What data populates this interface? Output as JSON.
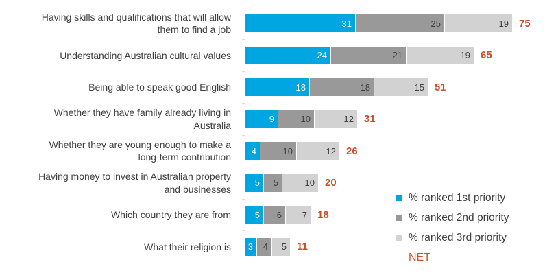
{
  "chart_data": {
    "type": "bar",
    "orientation": "horizontal",
    "stacked": true,
    "grid": false,
    "legend_position": "bottom-right",
    "value_labels": "inside-end",
    "xlim": [
      0,
      88
    ],
    "categories": [
      "Having skills and qualifications that will allow\nthem to find a job",
      "Understanding Australian cultural values",
      "Being able to speak good English",
      "Whether they have family already living in\nAustralia",
      "Whether they are young enough to make a\nlong-term contribution",
      "Having money to invest in Australian property\nand businesses",
      "Which country they are from",
      "What their religion is"
    ],
    "series": [
      {
        "name": "% ranked 1st priority",
        "slug": "1st-priority",
        "color": "#00A6E2",
        "value_label_color": "#FFFFFF",
        "values": [
          31,
          24,
          18,
          9,
          4,
          5,
          5,
          3
        ]
      },
      {
        "name": "% ranked 2nd priority",
        "slug": "2nd-priority",
        "color": "#999999",
        "value_label_color": "#404040",
        "values": [
          25,
          21,
          18,
          10,
          10,
          5,
          6,
          4
        ]
      },
      {
        "name": "% ranked 3rd priority",
        "slug": "3rd-priority",
        "color": "#D2D2D2",
        "value_label_color": "#404040",
        "values": [
          19,
          19,
          15,
          12,
          12,
          10,
          7,
          5
        ]
      }
    ],
    "net": {
      "label": "NET",
      "color": "#C8512F",
      "values": [
        75,
        65,
        51,
        31,
        26,
        20,
        18,
        11
      ]
    }
  },
  "colors": {
    "category_label_text": "#404040",
    "legend_text": "#404040",
    "axis_line": "#D9D9D9",
    "background": "#FFFFFF"
  }
}
